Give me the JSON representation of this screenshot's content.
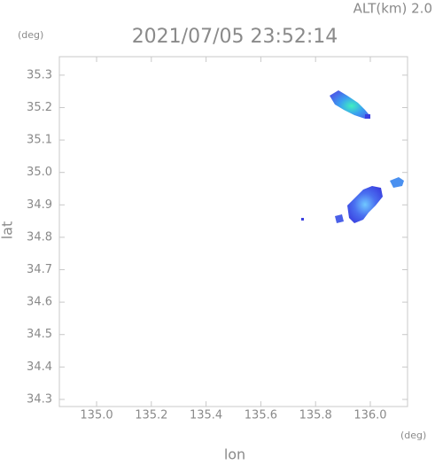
{
  "chart_data": {
    "type": "map",
    "altitude_label": "ALT(km) 2.0",
    "title": "2021/07/05 23:52:14",
    "xlabel": "lon",
    "ylabel": "lat",
    "x_unit": "(deg)",
    "y_unit": "(deg)",
    "xlim": [
      134.864,
      136.136
    ],
    "ylim": [
      34.278,
      35.357
    ],
    "xticks": [
      {
        "value": 135,
        "label": "135.0"
      },
      135.2,
      135.4,
      135.6,
      135.8,
      {
        "value": 136,
        "label": "136.0"
      }
    ],
    "yticks": [
      35.3,
      35.2,
      35.1,
      {
        "value": 35,
        "label": "35.0"
      },
      34.9,
      34.8,
      34.7,
      34.6,
      34.5,
      34.4,
      34.3
    ]
  }
}
